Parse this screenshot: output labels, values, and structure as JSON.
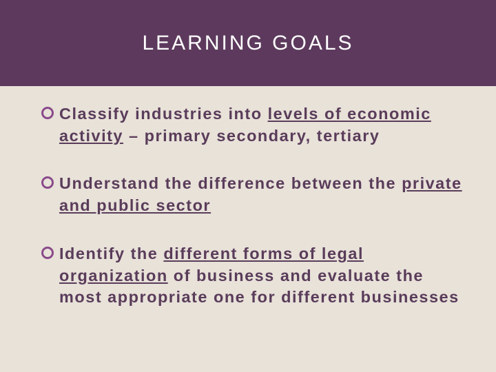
{
  "slide": {
    "title": "LEARNING GOALS",
    "header_bg_color": "#5d3a5d",
    "header_text_color": "#ffffff",
    "content_bg_color": "#e8e2d9",
    "bullet_marker_color": "#8a4a8a",
    "text_color": "#5a3c5a",
    "bullets": [
      {
        "pre": "Classify industries into ",
        "underlined": "levels of economic activity",
        "post": " – primary secondary, tertiary"
      },
      {
        "pre": "Understand the difference between the ",
        "underlined": "private and public sector",
        "post": ""
      },
      {
        "pre": "Identify the ",
        "underlined": "different forms of legal organization",
        "post": " of business and evaluate the most appropriate one for different businesses"
      }
    ]
  }
}
